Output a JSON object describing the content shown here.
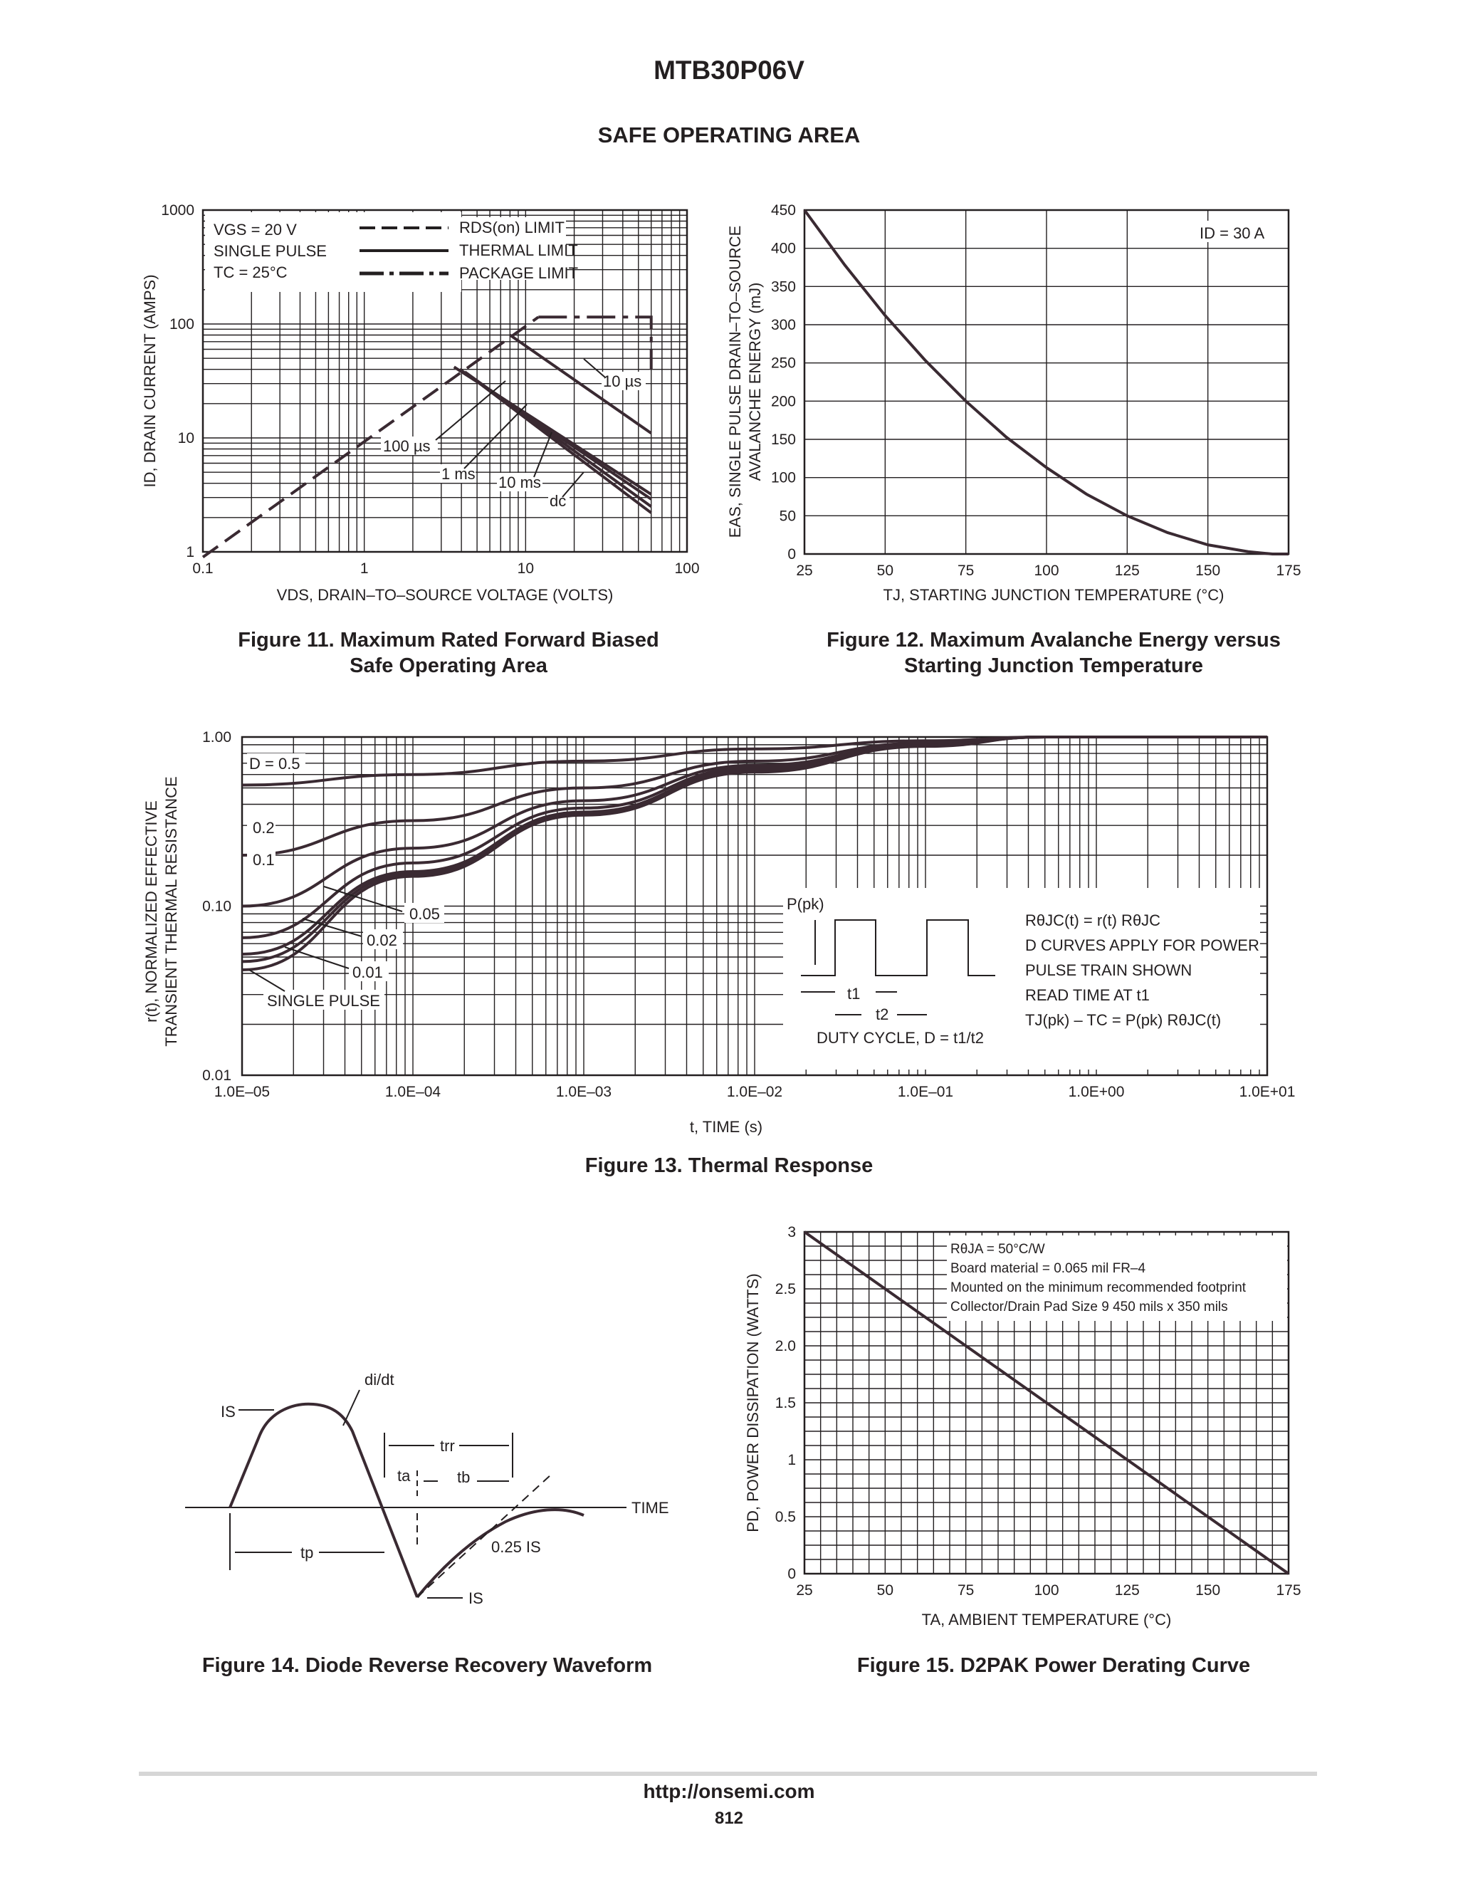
{
  "header": {
    "part_number": "MTB30P06V",
    "section_title": "SAFE OPERATING AREA"
  },
  "fig11": {
    "caption_line1": "Figure 11. Maximum Rated Forward Biased",
    "caption_line2": "Safe Operating Area",
    "cond1": "VGS = 20 V",
    "cond2": "SINGLE PULSE",
    "cond3": "TC = 25°C",
    "legend1": "RDS(on) LIMIT",
    "legend2": "THERMAL LIMIT",
    "legend3": "PACKAGE LIMIT",
    "label_10us": "10 µs",
    "label_100us": "100 µs",
    "label_1ms": "1 ms",
    "label_10ms": "10 ms",
    "label_dc": "dc",
    "xlabel": "VDS, DRAIN–TO–SOURCE VOLTAGE (VOLTS)",
    "ylabel": "ID, DRAIN CURRENT (AMPS)"
  },
  "fig12": {
    "caption_line1": "Figure 12. Maximum Avalanche Energy versus",
    "caption_line2": "Starting Junction Temperature",
    "annotation": "ID = 30 A",
    "xlabel": "TJ, STARTING JUNCTION TEMPERATURE (°C)",
    "ylabel1": "EAS, SINGLE PULSE DRAIN–TO–SOURCE",
    "ylabel2": "AVALANCHE ENERGY (mJ)"
  },
  "fig13": {
    "caption": "Figure 13. Thermal Response",
    "xlabel": "t, TIME (s)",
    "ylabel1": "r(t), NORMALIZED EFFECTIVE",
    "ylabel2": "TRANSIENT THERMAL RESISTANCE",
    "d_labels": [
      "D = 0.5",
      "0.2",
      "0.1",
      "0.05",
      "0.02",
      "0.01",
      "SINGLE PULSE"
    ],
    "inset_ppk": "P(pk)",
    "inset_t1": "t1",
    "inset_t2": "t2",
    "inset_duty": "DUTY CYCLE, D = t1/t2",
    "notes": [
      "RθJC(t) = r(t) RθJC",
      "D CURVES APPLY FOR POWER",
      "PULSE TRAIN SHOWN",
      "READ TIME AT t1",
      "TJ(pk) – TC = P(pk) RθJC(t)"
    ]
  },
  "fig14": {
    "caption": "Figure 14. Diode Reverse Recovery Waveform",
    "labels": {
      "is_top": "IS",
      "didt": "di/dt",
      "trr": "trr",
      "ta": "ta",
      "tb": "tb",
      "time": "TIME",
      "tp": "tp",
      "quarter_is": "0.25 IS",
      "is_bottom": "IS"
    }
  },
  "fig15": {
    "caption": "Figure 15. D2PAK Power Derating Curve",
    "notes": [
      "RθJA = 50°C/W",
      "Board material = 0.065 mil FR–4",
      "Mounted on the minimum recommended footprint",
      "Collector/Drain Pad Size 9 450 mils x 350 mils"
    ],
    "xlabel": "TA, AMBIENT TEMPERATURE (°C)",
    "ylabel": "PD, POWER DISSIPATION (WATTS)"
  },
  "footer": {
    "url": "http://onsemi.com",
    "page": "812"
  },
  "chart_data": [
    {
      "type": "line",
      "title": "Figure 11. Maximum Rated Forward Biased Safe Operating Area",
      "xlabel": "VDS, DRAIN–TO–SOURCE VOLTAGE (VOLTS)",
      "ylabel": "ID, DRAIN CURRENT (AMPS)",
      "xscale": "log",
      "yscale": "log",
      "xlim": [
        0.1,
        100
      ],
      "ylim": [
        1,
        1000
      ],
      "x_ticks": [
        "0.1",
        "1",
        "10",
        "100"
      ],
      "y_ticks": [
        "1",
        "10",
        "100",
        "1000"
      ],
      "series": [
        {
          "name": "RDS(on) LIMIT",
          "x": [
            0.1,
            12
          ],
          "y": [
            0.9,
            115
          ]
        },
        {
          "name": "PACKAGE LIMIT",
          "x": [
            12,
            60,
            60
          ],
          "y": [
            115,
            115,
            40
          ]
        },
        {
          "name": "10 µs",
          "x": [
            8,
            60
          ],
          "y": [
            80,
            11
          ]
        },
        {
          "name": "100 µs",
          "x": [
            3.6,
            60
          ],
          "y": [
            42,
            3.2
          ]
        },
        {
          "name": "1 ms",
          "x": [
            3.9,
            60
          ],
          "y": [
            40,
            2.9
          ]
        },
        {
          "name": "10 ms",
          "x": [
            4.2,
            60
          ],
          "y": [
            38,
            2.5
          ]
        },
        {
          "name": "dc",
          "x": [
            4.5,
            60
          ],
          "y": [
            35,
            2.2
          ]
        }
      ]
    },
    {
      "type": "line",
      "title": "Figure 12. Maximum Avalanche Energy versus Starting Junction Temperature",
      "xlabel": "TJ, STARTING JUNCTION TEMPERATURE (°C)",
      "ylabel": "EAS, SINGLE PULSE DRAIN–TO–SOURCE AVALANCHE ENERGY (mJ)",
      "xlim": [
        25,
        175
      ],
      "ylim": [
        0,
        450
      ],
      "x_ticks": [
        "25",
        "50",
        "75",
        "100",
        "125",
        "150",
        "175"
      ],
      "y_ticks": [
        "0",
        "50",
        "100",
        "150",
        "200",
        "250",
        "300",
        "350",
        "400",
        "450"
      ],
      "series": [
        {
          "name": "ID = 30 A",
          "x": [
            25,
            37.5,
            50,
            62.5,
            75,
            87.5,
            100,
            112.5,
            125,
            137.5,
            150,
            162.5,
            170,
            175
          ],
          "y": [
            450,
            378,
            312,
            253,
            200,
            153,
            113,
            78,
            50,
            28,
            12,
            3,
            0,
            0
          ]
        }
      ]
    },
    {
      "type": "line",
      "title": "Figure 13. Thermal Response",
      "xlabel": "t, TIME (s)",
      "ylabel": "r(t), NORMALIZED EFFECTIVE TRANSIENT THERMAL RESISTANCE",
      "xscale": "log",
      "yscale": "log",
      "xlim": [
        1e-05,
        10
      ],
      "ylim": [
        0.01,
        1
      ],
      "x_ticks": [
        "1.0E–05",
        "1.0E–04",
        "1.0E–03",
        "1.0E–02",
        "1.0E–01",
        "1.0E+00",
        "1.0E+01"
      ],
      "y_ticks": [
        "0.01",
        "0.10",
        "1.00"
      ],
      "x": [
        1e-05,
        0.0001,
        0.001,
        0.01,
        0.1,
        0.5,
        10
      ],
      "series": [
        {
          "name": "D = 0.5",
          "values": [
            0.52,
            0.6,
            0.72,
            0.85,
            0.95,
            1.0,
            1.0
          ]
        },
        {
          "name": "0.2",
          "values": [
            0.2,
            0.32,
            0.5,
            0.72,
            0.92,
            1.0,
            1.0
          ]
        },
        {
          "name": "0.1",
          "values": [
            0.1,
            0.22,
            0.42,
            0.68,
            0.9,
            1.0,
            1.0
          ]
        },
        {
          "name": "0.05",
          "values": [
            0.065,
            0.18,
            0.38,
            0.66,
            0.9,
            1.0,
            1.0
          ]
        },
        {
          "name": "0.02",
          "values": [
            0.052,
            0.16,
            0.36,
            0.64,
            0.89,
            1.0,
            1.0
          ]
        },
        {
          "name": "0.01",
          "values": [
            0.047,
            0.155,
            0.35,
            0.63,
            0.89,
            1.0,
            1.0
          ]
        },
        {
          "name": "SINGLE PULSE",
          "values": [
            0.042,
            0.15,
            0.345,
            0.62,
            0.88,
            1.0,
            1.0
          ]
        }
      ]
    },
    {
      "type": "line",
      "title": "Figure 15. D2PAK Power Derating Curve",
      "xlabel": "TA, AMBIENT TEMPERATURE (°C)",
      "ylabel": "PD, POWER DISSIPATION (WATTS)",
      "xlim": [
        25,
        175
      ],
      "ylim": [
        0,
        3
      ],
      "x_ticks": [
        "25",
        "50",
        "75",
        "100",
        "125",
        "150",
        "175"
      ],
      "y_ticks": [
        "0",
        "0.5",
        "1",
        "1.5",
        "2.0",
        "2.5",
        "3"
      ],
      "series": [
        {
          "name": "",
          "x": [
            25,
            175
          ],
          "y": [
            3.0,
            0.0
          ]
        }
      ]
    }
  ]
}
